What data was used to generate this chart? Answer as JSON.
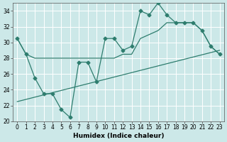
{
  "xlabel": "Humidex (Indice chaleur)",
  "bg_color": "#cce8e8",
  "grid_color": "#ffffff",
  "line_color": "#2e7d6e",
  "xlim": [
    -0.5,
    23.5
  ],
  "ylim": [
    20,
    35
  ],
  "xticks": [
    0,
    1,
    2,
    3,
    4,
    5,
    6,
    7,
    8,
    9,
    10,
    11,
    12,
    13,
    14,
    15,
    16,
    17,
    18,
    19,
    20,
    21,
    22,
    23
  ],
  "yticks": [
    20,
    22,
    24,
    26,
    28,
    30,
    32,
    34
  ],
  "series1_x": [
    0,
    1,
    2,
    3,
    4,
    5,
    6,
    7,
    8,
    9,
    10,
    11,
    12,
    13,
    14,
    15,
    16,
    17,
    18,
    19,
    20,
    21,
    22,
    23
  ],
  "series1_y": [
    30.5,
    28.5,
    25.5,
    23.5,
    23.5,
    21.5,
    20.5,
    27.5,
    27.5,
    25.0,
    30.5,
    30.5,
    29.0,
    29.5,
    34.0,
    33.5,
    35.0,
    33.5,
    32.5,
    32.5,
    32.5,
    31.5,
    29.5,
    28.5
  ],
  "series2_x": [
    0,
    1,
    2,
    3,
    4,
    5,
    6,
    7,
    8,
    9,
    10,
    11,
    12,
    13,
    14,
    15,
    16,
    17,
    18,
    19,
    20,
    21,
    22,
    23
  ],
  "series2_y": [
    30.5,
    28.5,
    28.0,
    28.0,
    28.0,
    28.0,
    28.0,
    28.0,
    28.0,
    28.0,
    28.0,
    28.0,
    28.5,
    28.5,
    30.5,
    31.0,
    31.5,
    32.5,
    32.5,
    32.5,
    32.5,
    31.5,
    29.5,
    28.5
  ],
  "series3_x": [
    0,
    23
  ],
  "series3_y": [
    22.5,
    29.0
  ],
  "marker_size": 2.5,
  "linewidth": 0.9,
  "axis_fontsize": 6.5,
  "tick_fontsize": 5.5
}
